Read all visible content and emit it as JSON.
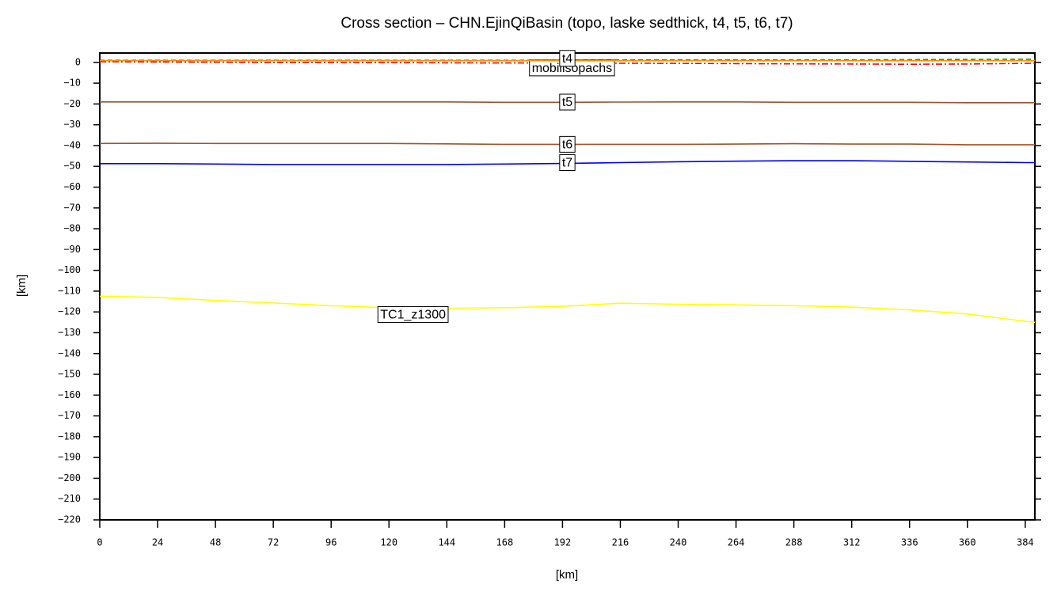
{
  "chart_data": {
    "type": "line",
    "title": "Cross section – CHN.EjinQiBasin (topo, laske sedthick, t4, t5, t6, t7)",
    "x_label": "[km]",
    "y_label": "[km]",
    "x": [
      0,
      24,
      48,
      72,
      96,
      120,
      144,
      168,
      192,
      216,
      240,
      264,
      288,
      312,
      336,
      360,
      384,
      388
    ],
    "series": [
      {
        "color": "#00a000",
        "dash": "6,4",
        "values": [
          1,
          1,
          1,
          1,
          1,
          1,
          1,
          1,
          1,
          1.2,
          1.2,
          1.2,
          1.2,
          1.2,
          1.3,
          1.4,
          1.5,
          1.5
        ]
      },
      {
        "name": "mobilisopachs",
        "color": "#ff0000",
        "dash": "8,3,2,3",
        "values": [
          0.3,
          0.2,
          0.1,
          0,
          0,
          -0.1,
          -0.2,
          -0.3,
          -0.3,
          -0.4,
          -0.5,
          -0.6,
          -0.7,
          -0.8,
          -0.9,
          -0.8,
          -0.5,
          -0.4
        ]
      },
      {
        "name": "t4",
        "color": "#ff8c00",
        "values": [
          0.8,
          0.8,
          0.8,
          0.8,
          0.8,
          0.8,
          0.8,
          0.8,
          0.8,
          0.8,
          0.8,
          0.8,
          0.8,
          0.8,
          0.8,
          0.8,
          0.8,
          0.8
        ]
      },
      {
        "name": "t5",
        "color": "#a0522d",
        "values": [
          -19,
          -19,
          -19,
          -19,
          -19,
          -19,
          -19,
          -19.2,
          -19.2,
          -19.1,
          -19,
          -19,
          -19.2,
          -19.2,
          -19.2,
          -19.4,
          -19.4,
          -19.4
        ]
      },
      {
        "name": "t6",
        "color": "#a0522d",
        "values": [
          -39,
          -38.9,
          -39,
          -39,
          -39,
          -39,
          -39.2,
          -39.4,
          -39.4,
          -39.4,
          -39.4,
          -39.3,
          -39.1,
          -39.3,
          -39.3,
          -39.6,
          -39.6,
          -39.6
        ]
      },
      {
        "name": "t7",
        "color": "#0000ff",
        "values": [
          -48.7,
          -48.7,
          -48.9,
          -49.1,
          -49.1,
          -49.1,
          -49.1,
          -48.9,
          -48.6,
          -48.2,
          -47.8,
          -47.5,
          -47.3,
          -47.3,
          -47.6,
          -47.9,
          -48.2,
          -48.2
        ]
      },
      {
        "name": "TC1_z1300",
        "color": "#ffff00",
        "values": [
          -112.5,
          -113,
          -114.5,
          -115.7,
          -117,
          -118,
          -118.2,
          -118,
          -117.3,
          -115.8,
          -116.3,
          -116.6,
          -117,
          -117.7,
          -119,
          -121,
          -124.5,
          -125
        ]
      }
    ],
    "xlim": [
      0,
      388
    ],
    "ylim": [
      -220,
      4.5
    ],
    "xticks": [
      0,
      24,
      48,
      72,
      96,
      120,
      144,
      168,
      192,
      216,
      240,
      264,
      288,
      312,
      336,
      360,
      384
    ],
    "yticks": [
      0,
      {
        "value": -10,
        "label": "−10"
      },
      {
        "value": -20,
        "label": "−20"
      },
      {
        "value": -30,
        "label": "−30"
      },
      {
        "value": -40,
        "label": "−40"
      },
      {
        "value": -50,
        "label": "−50"
      },
      {
        "value": -60,
        "label": "−60"
      },
      {
        "value": -70,
        "label": "−70"
      },
      {
        "value": -80,
        "label": "−80"
      },
      {
        "value": -90,
        "label": "−90"
      },
      {
        "value": -100,
        "label": "−100"
      },
      {
        "value": -110,
        "label": "−110"
      },
      {
        "value": -120,
        "label": "−120"
      },
      {
        "value": -130,
        "label": "−130"
      },
      {
        "value": -140,
        "label": "−140"
      },
      {
        "value": -150,
        "label": "−150"
      },
      {
        "value": -160,
        "label": "−160"
      },
      {
        "value": -170,
        "label": "−170"
      },
      {
        "value": -180,
        "label": "−180"
      },
      {
        "value": -190,
        "label": "−190"
      },
      {
        "value": -200,
        "label": "−200"
      },
      {
        "value": -210,
        "label": "−210"
      },
      {
        "value": -220,
        "label": "−220"
      }
    ]
  }
}
